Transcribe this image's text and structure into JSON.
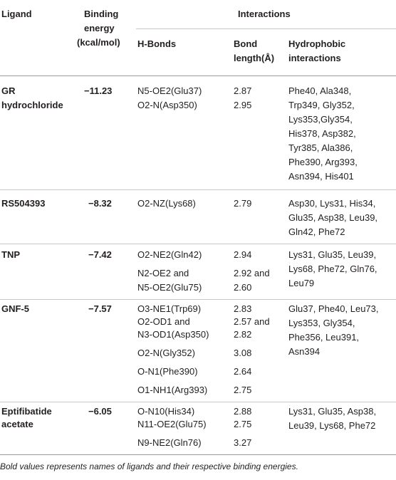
{
  "header": {
    "ligand": "Ligand",
    "binding_energy_lines": [
      "Binding",
      "energy",
      "(kcal/mol)"
    ],
    "interactions": "Interactions",
    "hbonds": "H-Bonds",
    "bond_length_lines": [
      "Bond",
      "length(Å)"
    ],
    "hydrophobic_lines": [
      "Hydrophobic",
      "interactions"
    ]
  },
  "rows": {
    "gr": {
      "ligand_lines": [
        "GR",
        "hydrochloride"
      ],
      "energy": "−11.23",
      "hbonds": [
        "N5-OE2(Glu37)",
        "O2-N(Asp350)"
      ],
      "lengths": [
        "2.87",
        "2.95"
      ],
      "hydrophobic": [
        "Phe40, Ala348,",
        "Trp349, Gly352,",
        "Lys353,Gly354,",
        "His378, Asp382,",
        "Tyr385, Ala386,",
        "Phe390, Arg393,",
        "Asn394, His401"
      ]
    },
    "rs": {
      "ligand": "RS504393",
      "energy": "−8.32",
      "hbonds": [
        "O2-NZ(Lys68)"
      ],
      "lengths": [
        "2.79"
      ],
      "hydrophobic": [
        "Asp30, Lys31, His34,",
        "Glu35, Asp38, Leu39,",
        "Gln42, Phe72"
      ]
    },
    "tnp": {
      "ligand": "TNP",
      "energy": "−7.42",
      "hbonds_a": [
        "O2-NE2(Gln42)"
      ],
      "lengths_a": [
        "2.94"
      ],
      "hbonds_b": [
        "N2-OE2 and",
        "N5-OE2(Glu75)"
      ],
      "lengths_b": [
        "2.92 and",
        "2.60"
      ],
      "hydrophobic": [
        "Lys31, Glu35, Leu39,",
        "Lys68, Phe72, Gln76,",
        "Leu79"
      ]
    },
    "gnf": {
      "ligand": "GNF-5",
      "energy": "−7.57",
      "hbonds_a": [
        "O3-NE1(Trp69)",
        "O2-OD1 and",
        "N3-OD1(Asp350)"
      ],
      "lengths_a": [
        "2.83",
        "2.57 and",
        "2.82"
      ],
      "hbonds_b": [
        "O2-N(Gly352)"
      ],
      "lengths_b": [
        "3.08"
      ],
      "hbonds_c": [
        "O-N1(Phe390)"
      ],
      "lengths_c": [
        "2.64"
      ],
      "hbonds_d": [
        "O1-NH1(Arg393)"
      ],
      "lengths_d": [
        "2.75"
      ],
      "hydrophobic": [
        "Glu37, Phe40, Leu73,",
        "Lys353, Gly354,",
        "Phe356, Leu391,",
        "Asn394"
      ]
    },
    "epti": {
      "ligand_lines": [
        "Eptifibatide",
        "acetate"
      ],
      "energy": "−6.05",
      "hbonds_a": [
        "O-N10(His34)",
        "N11-OE2(Glu75)"
      ],
      "lengths_a": [
        "2.88",
        "2.75"
      ],
      "hbonds_b": [
        "N9-NE2(Gln76)"
      ],
      "lengths_b": [
        "3.27"
      ],
      "hydrophobic": [
        "Lys31, Glu35, Asp38,",
        "Leu39, Lys68, Phe72"
      ]
    }
  },
  "footnote": "Bold values represents names of ligands and their respective binding energies."
}
